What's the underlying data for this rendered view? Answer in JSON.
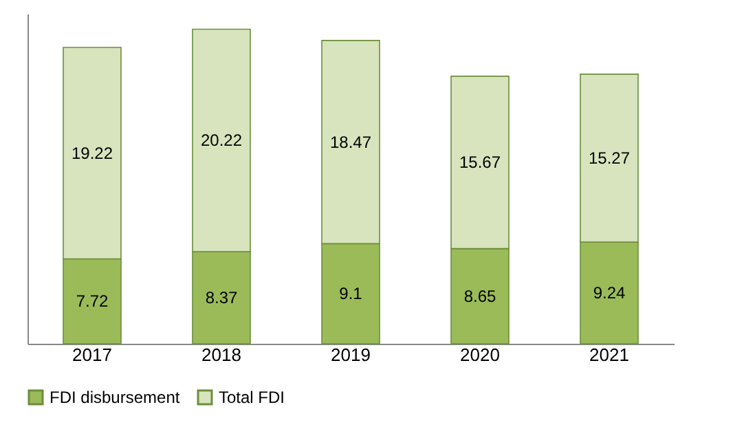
{
  "chart_data": {
    "type": "bar",
    "stacked": true,
    "categories": [
      "2017",
      "2018",
      "2019",
      "2020",
      "2021"
    ],
    "series": [
      {
        "name": "FDI disbursement",
        "color": "#9bbb59",
        "values": [
          7.72,
          8.37,
          9.1,
          8.65,
          9.24
        ]
      },
      {
        "name": "Total FDI",
        "color": "#d7e4bd",
        "values": [
          19.22,
          20.22,
          18.47,
          15.67,
          15.27
        ]
      }
    ],
    "ylim": [
      0,
      30
    ],
    "tick_labels": "x",
    "data_labels": true,
    "legend": "bottom"
  }
}
